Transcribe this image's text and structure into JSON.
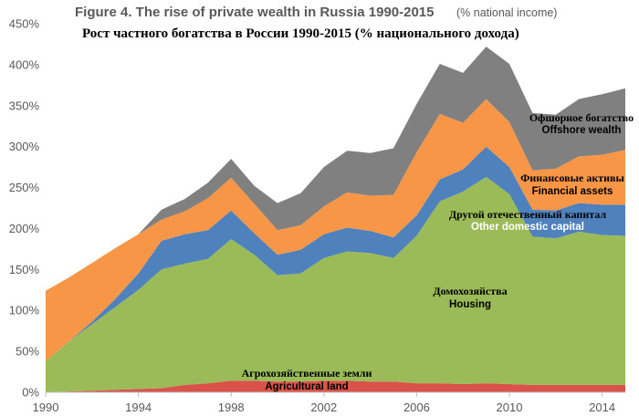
{
  "chart_data": {
    "type": "area",
    "stacked": true,
    "title": "Figure 4. The rise of private wealth in Russia 1990-2015",
    "title_note": "(% national income)",
    "subtitle": "Рост частного богатства в России 1990-2015 (% национального дохода)",
    "xlabel": "",
    "ylabel": "",
    "xlim": [
      1990,
      2015
    ],
    "ylim": [
      0,
      450
    ],
    "x_ticks": [
      1990,
      1994,
      1998,
      2002,
      2006,
      2010,
      2014
    ],
    "y_ticks": [
      0,
      50,
      100,
      150,
      200,
      250,
      300,
      350,
      400,
      450
    ],
    "y_tick_suffix": "%",
    "grid": false,
    "x": [
      1990,
      1991,
      1992,
      1993,
      1994,
      1995,
      1996,
      1997,
      1998,
      1999,
      2000,
      2001,
      2002,
      2003,
      2004,
      2005,
      2006,
      2007,
      2008,
      2009,
      2010,
      2011,
      2012,
      2013,
      2014,
      2015
    ],
    "series": [
      {
        "name": "Agricultural land",
        "label_ru": "Агрохозяйственные земли",
        "label_en": "Agricultural land",
        "color": "#d9534a",
        "values": [
          0,
          1,
          2,
          3,
          4,
          5,
          9,
          11,
          14,
          14,
          13,
          13,
          14,
          14,
          13,
          13,
          11,
          11,
          10,
          11,
          10,
          9,
          9,
          9,
          9,
          9
        ]
      },
      {
        "name": "Housing",
        "label_ru": "Домохозяйства",
        "label_en": "Housing",
        "color": "#9bbb59",
        "values": [
          38,
          61,
          81,
          101,
          121,
          145,
          148,
          152,
          173,
          154,
          130,
          132,
          150,
          158,
          157,
          151,
          180,
          222,
          235,
          252,
          232,
          181,
          179,
          187,
          183,
          182
        ]
      },
      {
        "name": "Other domestic capital",
        "label_ru": "Другой отечественный капитал",
        "label_en": "Other domestic capital",
        "color": "#4f81bd",
        "values": [
          0,
          0,
          3,
          10,
          20,
          35,
          36,
          35,
          35,
          26,
          25,
          29,
          29,
          29,
          27,
          25,
          25,
          27,
          27,
          37,
          33,
          33,
          34,
          35,
          37,
          38
        ]
      },
      {
        "name": "Financial assets",
        "label_ru": "Финансовые активы",
        "label_en": "Financial assets",
        "color": "#f79646",
        "values": [
          86,
          78,
          72,
          62,
          48,
          26,
          28,
          39,
          40,
          36,
          30,
          30,
          34,
          43,
          43,
          52,
          77,
          80,
          57,
          58,
          55,
          48,
          51,
          57,
          61,
          67
        ]
      },
      {
        "name": "Offshore wealth",
        "label_ru": "Офшорное богатство",
        "label_en": "Offshore wealth",
        "color": "#808080",
        "values": [
          0,
          0,
          0,
          0,
          0,
          12,
          15,
          19,
          23,
          22,
          33,
          39,
          48,
          51,
          52,
          57,
          59,
          61,
          61,
          64,
          71,
          70,
          66,
          70,
          74,
          75
        ]
      }
    ]
  }
}
